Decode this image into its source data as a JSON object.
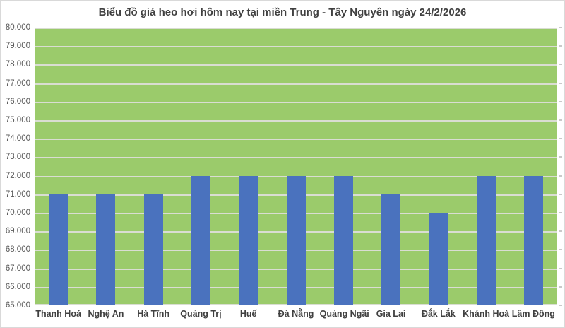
{
  "chart_data": {
    "type": "bar",
    "title": "Biểu đồ giá heo hơi hôm nay tại miền Trung - Tây Nguyên ngày 24/2/2026",
    "categories": [
      "Thanh Hoá",
      "Nghệ An",
      "Hà Tĩnh",
      "Quảng Trị",
      "Huế",
      "Đà Nẵng",
      "Quảng Ngãi",
      "Gia Lai",
      "Đắk Lắk",
      "Khánh Hoà",
      "Lâm Đồng"
    ],
    "values": [
      71000,
      71000,
      71000,
      72000,
      72000,
      72000,
      72000,
      71000,
      70000,
      72000,
      72000
    ],
    "xlabel": "",
    "ylabel": "",
    "ylim": [
      65000,
      80000
    ],
    "ytick_step": 1000,
    "ytick_labels": [
      "80.000",
      "79.000",
      "78.000",
      "77.000",
      "76.000",
      "75.000",
      "74.000",
      "73.000",
      "72.000",
      "71.000",
      "70.000",
      "69.000",
      "68.000",
      "67.000",
      "66.000",
      "65.000"
    ],
    "grid": true,
    "legend": "none",
    "colors": {
      "bar": "#4a72be",
      "plot_background": "#9bcb6b",
      "gridline": "#d9ddd2",
      "title_text": "#404040",
      "y_label_text": "#595959",
      "x_label_text": "#404040",
      "chart_border": "#d9d9d9",
      "background": "#ffffff"
    }
  }
}
